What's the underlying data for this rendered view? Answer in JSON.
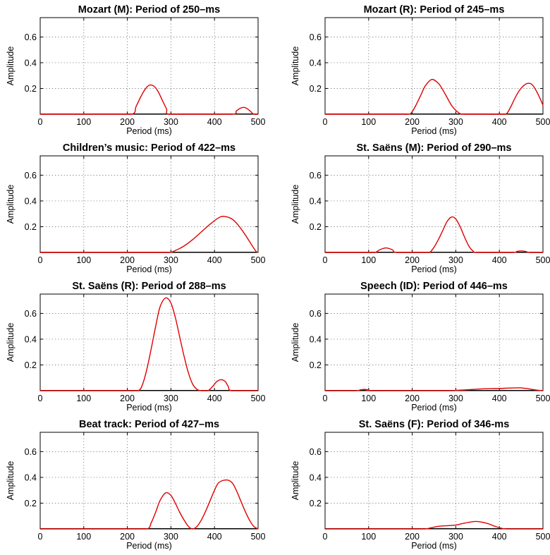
{
  "figure": {
    "line_color": "#e00000",
    "baseline_color": "#000000",
    "grid": true
  },
  "chart_data": [
    {
      "type": "line",
      "title": "Mozart (M): Period of 250–ms",
      "xlabel": "Period (ms)",
      "ylabel": "Amplitude",
      "xlim": [
        0,
        500
      ],
      "ylim": [
        0,
        0.75
      ],
      "xticks": [
        "0",
        "100",
        "200",
        "300",
        "400",
        "500"
      ],
      "yticks": [
        "0.2",
        "0.4",
        "0.6"
      ],
      "series": [
        {
          "x": [
            0,
            150,
            210,
            220,
            230,
            240,
            250,
            260,
            270,
            280,
            290,
            295,
            350,
            440,
            450,
            460,
            470,
            480,
            490,
            500
          ],
          "y": [
            0,
            0,
            0,
            0.06,
            0.13,
            0.19,
            0.225,
            0.22,
            0.18,
            0.11,
            0.04,
            0,
            0,
            0,
            0.025,
            0.048,
            0.052,
            0.03,
            0,
            0
          ]
        }
      ]
    },
    {
      "type": "line",
      "title": "Mozart (R): Period of 245–ms",
      "xlabel": "Period (ms)",
      "ylabel": "Amplitude",
      "xlim": [
        0,
        500
      ],
      "ylim": [
        0,
        0.75
      ],
      "xticks": [
        "0",
        "100",
        "200",
        "300",
        "400",
        "500"
      ],
      "yticks": [
        "0.2",
        "0.4",
        "0.6"
      ],
      "series": [
        {
          "x": [
            0,
            150,
            190,
            200,
            210,
            220,
            230,
            245,
            260,
            270,
            280,
            290,
            300,
            310,
            320,
            400,
            415,
            425,
            435,
            445,
            455,
            465,
            475,
            485,
            495,
            500
          ],
          "y": [
            0,
            0,
            0,
            0.02,
            0.08,
            0.15,
            0.22,
            0.27,
            0.24,
            0.19,
            0.13,
            0.07,
            0.03,
            0.005,
            0,
            0,
            0,
            0.05,
            0.12,
            0.18,
            0.22,
            0.24,
            0.23,
            0.18,
            0.11,
            0.07
          ]
        }
      ]
    },
    {
      "type": "line",
      "title": "Children’s music: Period of 422–ms",
      "xlabel": "Period (ms)",
      "ylabel": "Amplitude",
      "xlim": [
        0,
        500
      ],
      "ylim": [
        0,
        0.75
      ],
      "xticks": [
        "0",
        "100",
        "200",
        "300",
        "400",
        "500"
      ],
      "yticks": [
        "0.2",
        "0.4",
        "0.6"
      ],
      "series": [
        {
          "x": [
            0,
            250,
            295,
            310,
            330,
            350,
            370,
            390,
            410,
            422,
            440,
            455,
            470,
            485,
            495,
            500
          ],
          "y": [
            0,
            0,
            0,
            0.015,
            0.05,
            0.1,
            0.16,
            0.22,
            0.27,
            0.28,
            0.26,
            0.21,
            0.14,
            0.06,
            0.01,
            0
          ]
        }
      ]
    },
    {
      "type": "line",
      "title": "St. Saëns (M): Period of 290–ms",
      "xlabel": "Period (ms)",
      "ylabel": "Amplitude",
      "xlim": [
        0,
        500
      ],
      "ylim": [
        0,
        0.75
      ],
      "xticks": [
        "0",
        "100",
        "200",
        "300",
        "400",
        "500"
      ],
      "yticks": [
        "0.2",
        "0.4",
        "0.6"
      ],
      "series": [
        {
          "x": [
            0,
            100,
            115,
            125,
            140,
            155,
            165,
            230,
            240,
            250,
            260,
            270,
            280,
            290,
            300,
            310,
            320,
            330,
            340,
            350,
            430,
            440,
            450,
            460,
            470,
            500
          ],
          "y": [
            0,
            0,
            0,
            0.02,
            0.035,
            0.02,
            0,
            0,
            0,
            0.04,
            0.1,
            0.17,
            0.24,
            0.275,
            0.26,
            0.2,
            0.12,
            0.05,
            0.01,
            0,
            0,
            0.008,
            0.012,
            0.008,
            0,
            0
          ]
        }
      ]
    },
    {
      "type": "line",
      "title": "St. Saëns (R): Period of 288–ms",
      "xlabel": "Period (ms)",
      "ylabel": "Amplitude",
      "xlim": [
        0,
        500
      ],
      "ylim": [
        0,
        0.75
      ],
      "xticks": [
        "0",
        "100",
        "200",
        "300",
        "400",
        "500"
      ],
      "yticks": [
        "0.2",
        "0.4",
        "0.6"
      ],
      "series": [
        {
          "x": [
            0,
            200,
            225,
            235,
            245,
            255,
            265,
            275,
            288,
            300,
            310,
            320,
            330,
            340,
            350,
            360,
            370,
            385,
            395,
            405,
            415,
            425,
            432,
            440,
            500
          ],
          "y": [
            0,
            0,
            0,
            0.05,
            0.17,
            0.33,
            0.5,
            0.65,
            0.72,
            0.68,
            0.57,
            0.42,
            0.27,
            0.14,
            0.05,
            0.01,
            0,
            0,
            0.03,
            0.07,
            0.085,
            0.07,
            0.03,
            0,
            0
          ]
        }
      ]
    },
    {
      "type": "line",
      "title": "Speech (ID): Period of 446–ms",
      "xlabel": "Period (ms)",
      "ylabel": "Amplitude",
      "xlim": [
        0,
        500
      ],
      "ylim": [
        0,
        0.75
      ],
      "xticks": [
        "0",
        "100",
        "200",
        "300",
        "400",
        "500"
      ],
      "yticks": [
        "0.2",
        "0.4",
        "0.6"
      ],
      "series": [
        {
          "x": [
            0,
            70,
            80,
            90,
            100,
            110,
            280,
            300,
            320,
            340,
            360,
            380,
            400,
            420,
            446,
            460,
            475,
            490,
            500
          ],
          "y": [
            0,
            0,
            0.006,
            0.01,
            0.006,
            0,
            0,
            0.002,
            0.006,
            0.01,
            0.014,
            0.016,
            0.017,
            0.02,
            0.022,
            0.018,
            0.01,
            0.003,
            0
          ]
        }
      ]
    },
    {
      "type": "line",
      "title": "Beat track: Period of 427–ms",
      "xlabel": "Period (ms)",
      "ylabel": "Amplitude",
      "xlim": [
        0,
        500
      ],
      "ylim": [
        0,
        0.75
      ],
      "xticks": [
        "0",
        "100",
        "200",
        "300",
        "400",
        "500"
      ],
      "yticks": [
        "0.2",
        "0.4",
        "0.6"
      ],
      "series": [
        {
          "x": [
            0,
            200,
            245,
            255,
            265,
            275,
            288,
            300,
            310,
            320,
            330,
            340,
            350,
            360,
            370,
            380,
            390,
            400,
            410,
            427,
            440,
            450,
            460,
            470,
            480,
            490,
            500
          ],
          "y": [
            0,
            0,
            0,
            0.05,
            0.13,
            0.22,
            0.28,
            0.26,
            0.2,
            0.13,
            0.07,
            0.02,
            0,
            0.02,
            0.07,
            0.14,
            0.22,
            0.3,
            0.36,
            0.38,
            0.36,
            0.3,
            0.22,
            0.14,
            0.07,
            0.02,
            0
          ]
        }
      ]
    },
    {
      "type": "line",
      "title": "St. Saëns (F): Period of 346-ms",
      "xlabel": "Period (ms)",
      "ylabel": "Amplitude",
      "xlim": [
        0,
        500
      ],
      "ylim": [
        0,
        0.75
      ],
      "xticks": [
        "0",
        "100",
        "200",
        "300",
        "400",
        "500"
      ],
      "yticks": [
        "0.2",
        "0.4",
        "0.6"
      ],
      "series": [
        {
          "x": [
            0,
            200,
            230,
            245,
            260,
            280,
            300,
            320,
            346,
            370,
            390,
            405,
            420,
            500
          ],
          "y": [
            0,
            0,
            0,
            0.01,
            0.02,
            0.025,
            0.03,
            0.045,
            0.058,
            0.045,
            0.02,
            0.005,
            0,
            0
          ]
        }
      ]
    }
  ]
}
